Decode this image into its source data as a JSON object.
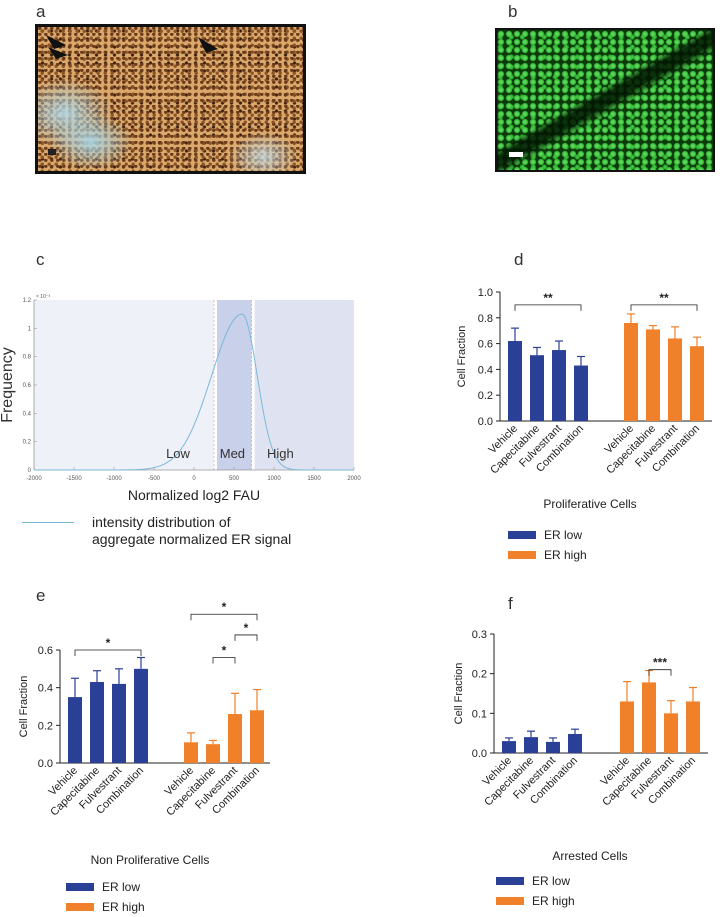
{
  "panels": {
    "a": "a",
    "b": "b",
    "c": "c",
    "d": "d",
    "e": "e",
    "f": "f"
  },
  "colors": {
    "er_low": "#2a3f96",
    "er_high": "#f0802a",
    "curve": "#7ab8d8",
    "band": "#dbe0f0",
    "band_mid": "#c8d0ea"
  },
  "legend": {
    "er_low": "ER low",
    "er_high": "ER high"
  },
  "chart_data": [
    {
      "id": "c",
      "type": "line",
      "xlabel": "Normalized log2 FAU",
      "ylabel": "Frequency",
      "exponent_label": "× 10⁻³",
      "xlim": [
        -2000,
        2000
      ],
      "ylim": [
        0,
        1.2
      ],
      "xticks": [
        -2000,
        -1500,
        -1000,
        -500,
        0,
        500,
        1000,
        1500,
        2000
      ],
      "yticks": [
        0,
        0.2,
        0.4,
        0.6,
        0.8,
        1,
        1.2
      ],
      "curve": {
        "peak_x": 600,
        "peak_y": 1.1,
        "sigma_left": 380,
        "sigma_right": 190
      },
      "regions": [
        {
          "label": "Low",
          "from": -2000,
          "to": 250
        },
        {
          "label": "Med",
          "from": 250,
          "to": 720
        },
        {
          "label": "High",
          "from": 720,
          "to": 2000
        }
      ],
      "legend_text_line1": "intensity distribution of",
      "legend_text_line2": "aggregate normalized ER signal"
    },
    {
      "id": "d",
      "type": "bar",
      "caption": "Proliferative Cells",
      "ylabel": "Cell Fraction",
      "ylim": [
        0,
        1.0
      ],
      "yticks": [
        "0.0",
        "0.2",
        "0.4",
        "0.6",
        "0.8",
        "1.0"
      ],
      "categories": [
        "Vehicle",
        "Capecitabine",
        "Fulvestrant",
        "Combination"
      ],
      "series": [
        {
          "name": "ER low",
          "values": [
            0.62,
            0.51,
            0.55,
            0.43
          ],
          "errors": [
            0.1,
            0.06,
            0.07,
            0.07
          ]
        },
        {
          "name": "ER high",
          "values": [
            0.76,
            0.71,
            0.64,
            0.58
          ],
          "errors": [
            0.07,
            0.03,
            0.09,
            0.07
          ]
        }
      ],
      "significance": [
        {
          "group": 0,
          "from": 0,
          "to": 3,
          "y": 0.9,
          "label": "**"
        },
        {
          "group": 1,
          "from": 0,
          "to": 3,
          "y": 0.9,
          "label": "**"
        }
      ]
    },
    {
      "id": "e",
      "type": "bar",
      "caption": "Non Proliferative Cells",
      "ylabel": "Cell Fraction",
      "ylim": [
        0,
        0.6
      ],
      "yticks": [
        "0.0",
        "0.2",
        "0.4",
        "0.6"
      ],
      "categories": [
        "Vehicle",
        "Capecitabine",
        "Fulvestrant",
        "Combination"
      ],
      "series": [
        {
          "name": "ER low",
          "values": [
            0.35,
            0.43,
            0.42,
            0.5
          ],
          "errors": [
            0.1,
            0.06,
            0.08,
            0.06
          ]
        },
        {
          "name": "ER high",
          "values": [
            0.11,
            0.1,
            0.26,
            0.28
          ],
          "errors": [
            0.05,
            0.02,
            0.11,
            0.11
          ]
        }
      ],
      "significance": [
        {
          "group": 0,
          "from": 0,
          "to": 3,
          "y": 0.6,
          "label": "*"
        },
        {
          "group": 1,
          "from": 0,
          "to": 3,
          "y": 0.79,
          "label": "*"
        },
        {
          "group": 1,
          "from": 2,
          "to": 3,
          "y": 0.68,
          "label": "*"
        },
        {
          "group": 1,
          "from": 1,
          "to": 2,
          "y": 0.56,
          "label": "*"
        }
      ]
    },
    {
      "id": "f",
      "type": "bar",
      "caption": "Arrested Cells",
      "ylabel": "Cell Fraction",
      "ylim": [
        0,
        0.3
      ],
      "yticks": [
        "0.0",
        "0.1",
        "0.2",
        "0.3"
      ],
      "categories": [
        "Vehicle",
        "Capecitabine",
        "Fulvestrant",
        "Combination"
      ],
      "series": [
        {
          "name": "ER low",
          "values": [
            0.03,
            0.04,
            0.028,
            0.048
          ],
          "errors": [
            0.008,
            0.015,
            0.01,
            0.012
          ]
        },
        {
          "name": "ER high",
          "values": [
            0.13,
            0.178,
            0.1,
            0.13
          ],
          "errors": [
            0.05,
            0.03,
            0.032,
            0.035
          ]
        }
      ],
      "significance": [
        {
          "group": 1,
          "from": 1,
          "to": 2,
          "y": 0.21,
          "label": "***"
        }
      ]
    }
  ]
}
